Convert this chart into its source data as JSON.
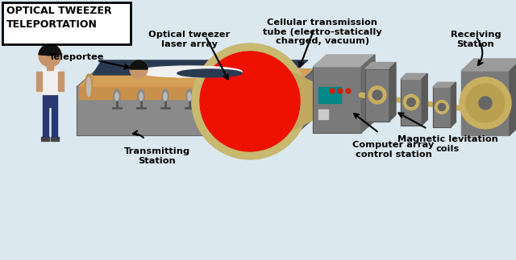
{
  "title_box": "OPTICAL TWEEZER\nTELEPORTATION",
  "background_color": "#dce8f0",
  "labels": {
    "teleportee": "Teleportee",
    "optical_tweezer": "Optical tweezer\nlaser array",
    "cellular_tube": "Cellular transmission\ntube (electro-statically\ncharged, vacuum)",
    "receiving": "Receiving\nStation",
    "mag_lev": "Magnetic levitation\ncoils",
    "computer": "Computer array\ncontrol station",
    "transmitting": "Transmitting\nStation"
  },
  "colors": {
    "platform_base": "#8a8a8a",
    "platform_side": "#6a6a6a",
    "platform_top": "#aaaaaa",
    "conveyor": "#c8904a",
    "conveyor_top": "#d4a055",
    "roller": "#888888",
    "roller_light": "#bbbbbb",
    "tube_ring": "#c8b870",
    "tube_inner": "#ee1100",
    "tube_body": "#c0a860",
    "coil_body": "#7a7a7a",
    "coil_top": "#9a9a9a",
    "coil_side": "#5a5a5a",
    "coil_gold": "#c8b060",
    "coil_hole": "#666666",
    "rod_color": "#c8b060",
    "recv_disk": "#c8b060",
    "recv_inner": "#b8a050",
    "ctrl_body": "#7a7a7a",
    "ctrl_screen": "#008888",
    "ctrl_button": "#cccccc",
    "human_skin": "#c8956a",
    "human_shirt": "#f0f0f0",
    "human_pants": "#283870",
    "human_hair": "#111111",
    "human_shoe": "#444444",
    "dark_navy": "#1a2855",
    "box_border": "#000000",
    "text_color": "#000000",
    "bg_light": "#dce8f0"
  }
}
